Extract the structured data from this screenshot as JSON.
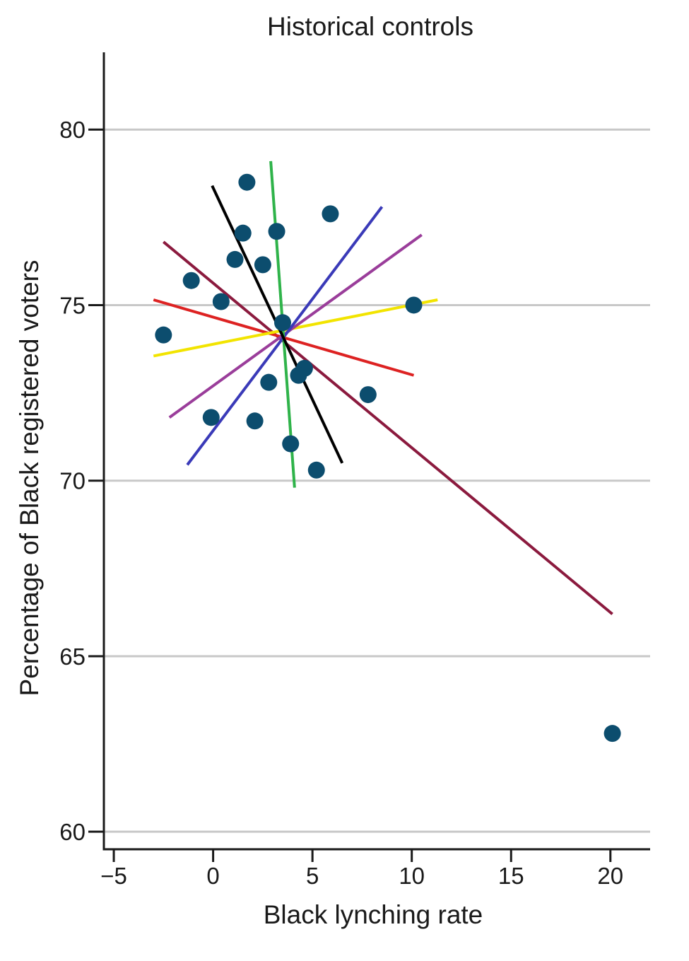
{
  "chart_data": {
    "type": "scatter",
    "title": "Historical controls",
    "xlabel": "Black lynching rate",
    "ylabel": "Percentage of Black registered voters",
    "xlim": [
      -5.5,
      22
    ],
    "ylim": [
      59.5,
      82.2
    ],
    "xticks": [
      -5,
      0,
      5,
      10,
      15,
      20
    ],
    "xtick_labels": [
      "−5",
      "0",
      "5",
      "10",
      "15",
      "20"
    ],
    "yticks": [
      60,
      65,
      70,
      75,
      80
    ],
    "ytick_labels": [
      "60",
      "65",
      "70",
      "75",
      "80"
    ],
    "grid": "horizontal",
    "colors": {
      "points": "#0c4d6e",
      "grid": "#c8c8c8",
      "axis": "#1a1a1a"
    },
    "points": [
      {
        "x": 1.7,
        "y": 78.5
      },
      {
        "x": 5.9,
        "y": 77.6
      },
      {
        "x": 1.5,
        "y": 77.05
      },
      {
        "x": 3.2,
        "y": 77.1
      },
      {
        "x": 1.1,
        "y": 76.3
      },
      {
        "x": 2.5,
        "y": 76.15
      },
      {
        "x": -1.1,
        "y": 75.7
      },
      {
        "x": 0.4,
        "y": 75.1
      },
      {
        "x": 10.1,
        "y": 75.0
      },
      {
        "x": -2.5,
        "y": 74.15
      },
      {
        "x": 3.5,
        "y": 74.5
      },
      {
        "x": 4.6,
        "y": 73.2
      },
      {
        "x": 4.3,
        "y": 73.0
      },
      {
        "x": 2.8,
        "y": 72.8
      },
      {
        "x": 7.8,
        "y": 72.45
      },
      {
        "x": -0.1,
        "y": 71.8
      },
      {
        "x": 2.1,
        "y": 71.7
      },
      {
        "x": 3.9,
        "y": 71.05
      },
      {
        "x": 5.2,
        "y": 70.3
      },
      {
        "x": 20.1,
        "y": 62.8
      }
    ],
    "lines": [
      {
        "color": "#8b1a3e",
        "x": [
          -2.5,
          20.1
        ],
        "y": [
          76.8,
          66.2
        ]
      },
      {
        "color": "#dd2222",
        "x": [
          -3.0,
          10.1
        ],
        "y": [
          75.15,
          73.0
        ]
      },
      {
        "color": "#f2e400",
        "x": [
          -3.0,
          11.3
        ],
        "y": [
          73.55,
          75.15
        ]
      },
      {
        "color": "#9a3d9a",
        "x": [
          -2.2,
          10.5
        ],
        "y": [
          71.8,
          77.0
        ]
      },
      {
        "color": "#3a3ab8",
        "x": [
          -1.3,
          8.5
        ],
        "y": [
          70.45,
          77.8
        ]
      },
      {
        "color": "#2fb34a",
        "x": [
          2.9,
          4.1
        ],
        "y": [
          79.1,
          69.8
        ]
      },
      {
        "color": "#000000",
        "x": [
          -0.05,
          6.5
        ],
        "y": [
          78.4,
          70.5
        ]
      }
    ]
  }
}
